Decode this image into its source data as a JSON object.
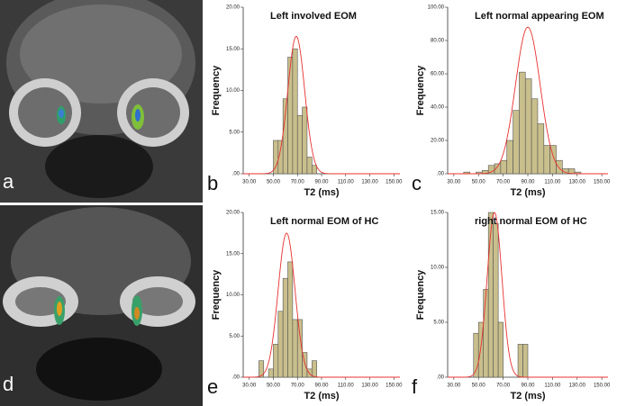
{
  "image_labels": [
    "a",
    "d"
  ],
  "chart_data": [
    {
      "type": "histogram",
      "panel_label": "b",
      "title": "Left involved EOM",
      "xlabel": "T2 (ms)",
      "ylabel": "Frequency",
      "bins": [
        50,
        54,
        58,
        62,
        66,
        70,
        74,
        78,
        82,
        86
      ],
      "values": [
        4,
        4,
        9,
        14,
        15,
        7,
        8,
        2,
        1
      ],
      "color": "#c9bf8c",
      "curve": {
        "mean": 69,
        "sd": 7,
        "peak": 16.5,
        "color": "#e8302f"
      },
      "xlim": [
        25,
        155
      ],
      "xticks": [
        {
          "value": 30,
          "label": "30.00"
        },
        {
          "value": 50,
          "label": "50.00"
        },
        {
          "value": 70,
          "label": "70.00"
        },
        {
          "value": 90,
          "label": "90.00"
        },
        {
          "value": 110,
          "label": "110.00"
        },
        {
          "value": 130,
          "label": "130.00"
        },
        {
          "value": 150,
          "label": "150.00"
        }
      ],
      "ylim": [
        0,
        20
      ],
      "yticks": [
        {
          "value": 0,
          "label": ".00"
        },
        {
          "value": 5,
          "label": "5.00"
        },
        {
          "value": 10,
          "label": "10.00"
        },
        {
          "value": 15,
          "label": "15.00"
        },
        {
          "value": 20,
          "label": "20.00"
        }
      ]
    },
    {
      "type": "histogram",
      "panel_label": "c",
      "title": "Left normal appearing EOM",
      "xlabel": "T2 (ms)",
      "ylabel": "Frequency",
      "bins": [
        38,
        43,
        48,
        53,
        58,
        63,
        68,
        73,
        78,
        83,
        88,
        93,
        98,
        103,
        108,
        113,
        118,
        123,
        128,
        133
      ],
      "values": [
        1,
        0,
        1,
        2,
        5,
        6,
        8,
        20,
        38,
        61,
        57,
        45,
        30,
        17,
        17,
        8,
        3,
        3,
        1
      ],
      "color": "#c9bf8c",
      "curve": {
        "mean": 90,
        "sd": 10,
        "peak": 88,
        "color": "#e8302f"
      },
      "xlim": [
        25,
        155
      ],
      "xticks": [
        {
          "value": 30,
          "label": "30.00"
        },
        {
          "value": 50,
          "label": "50.00"
        },
        {
          "value": 70,
          "label": "70.00"
        },
        {
          "value": 90,
          "label": "90.00"
        },
        {
          "value": 110,
          "label": "110.00"
        },
        {
          "value": 130,
          "label": "130.00"
        },
        {
          "value": 150,
          "label": "150.00"
        }
      ],
      "ylim": [
        0,
        100
      ],
      "yticks": [
        {
          "value": 0,
          "label": ".00"
        },
        {
          "value": 20,
          "label": "20.00"
        },
        {
          "value": 40,
          "label": "40.00"
        },
        {
          "value": 60,
          "label": "60.00"
        },
        {
          "value": 80,
          "label": "80.00"
        },
        {
          "value": 100,
          "label": "100.00"
        }
      ]
    },
    {
      "type": "histogram",
      "panel_label": "e",
      "title": "Left normal EOM of HC",
      "xlabel": "T2 (ms)",
      "ylabel": "Frequency",
      "bins": [
        38,
        42,
        46,
        50,
        54,
        58,
        62,
        66,
        70,
        74,
        78,
        82,
        86
      ],
      "values": [
        2,
        0,
        1,
        4,
        8,
        12,
        14,
        7,
        7,
        3,
        1,
        2
      ],
      "color": "#c9bf8c",
      "curve": {
        "mean": 61,
        "sd": 7,
        "peak": 17.5,
        "color": "#e8302f"
      },
      "xlim": [
        25,
        155
      ],
      "xticks": [
        {
          "value": 30,
          "label": "30.00"
        },
        {
          "value": 50,
          "label": "50.00"
        },
        {
          "value": 70,
          "label": "70.00"
        },
        {
          "value": 90,
          "label": "90.00"
        },
        {
          "value": 110,
          "label": "110.00"
        },
        {
          "value": 130,
          "label": "130.00"
        },
        {
          "value": 150,
          "label": "150.00"
        }
      ],
      "ylim": [
        0,
        20
      ],
      "yticks": [
        {
          "value": 0,
          "label": ".00"
        },
        {
          "value": 5,
          "label": "5.00"
        },
        {
          "value": 10,
          "label": "10.00"
        },
        {
          "value": 15,
          "label": "15.00"
        },
        {
          "value": 20,
          "label": "20.00"
        }
      ]
    },
    {
      "type": "histogram",
      "panel_label": "f",
      "title": "right normal EOM of HC",
      "xlabel": "T2 (ms)",
      "ylabel": "Frequency",
      "bins": [
        46,
        50,
        54,
        58,
        62,
        66,
        70,
        74,
        78,
        82,
        86,
        90
      ],
      "values": [
        4,
        5,
        8,
        15,
        14,
        5,
        0,
        0,
        0,
        3,
        3
      ],
      "color": "#c9bf8c",
      "curve": {
        "mean": 63,
        "sd": 6,
        "peak": 15,
        "color": "#e8302f"
      },
      "xlim": [
        25,
        155
      ],
      "xticks": [
        {
          "value": 30,
          "label": "30.00"
        },
        {
          "value": 50,
          "label": "50.00"
        },
        {
          "value": 70,
          "label": "70.00"
        },
        {
          "value": 90,
          "label": "90.00"
        },
        {
          "value": 110,
          "label": "110.00"
        },
        {
          "value": 130,
          "label": "130.00"
        },
        {
          "value": 150,
          "label": "150.00"
        }
      ],
      "ylim": [
        0,
        15
      ],
      "yticks": [
        {
          "value": 0,
          "label": ".00"
        },
        {
          "value": 5,
          "label": "5.00"
        },
        {
          "value": 10,
          "label": "10.00"
        },
        {
          "value": 15,
          "label": "15.00"
        }
      ]
    }
  ]
}
